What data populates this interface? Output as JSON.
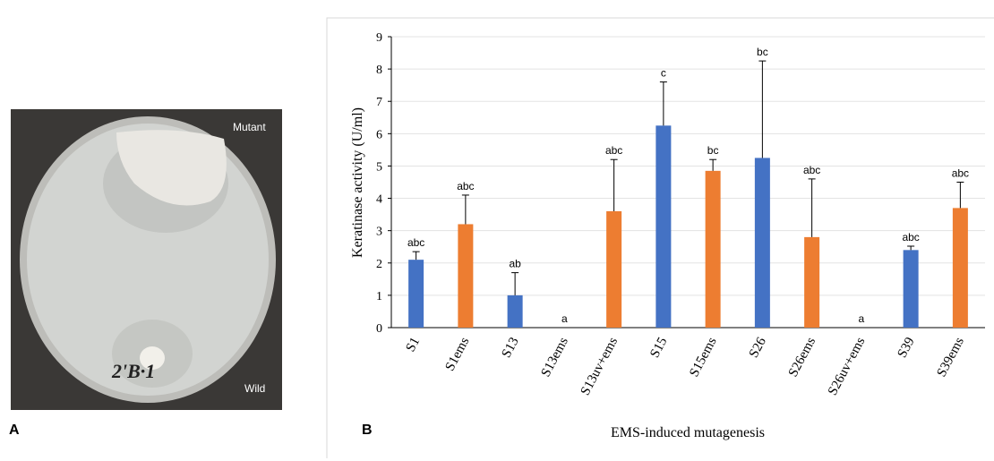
{
  "panels": {
    "a": "A",
    "b": "B"
  },
  "photo": {
    "top_label": "Mutant",
    "bottom_label": "Wild",
    "marking": "2'B·1"
  },
  "chart_data": {
    "type": "bar",
    "y_label": "Keratinase activity (U/ml)",
    "x_label": "EMS-induced mutagenesis",
    "categories": [
      "S1",
      "S1ems",
      "S13",
      "S13ems",
      "S13uv+ems",
      "S15",
      "S15ems",
      "S26",
      "S26ems",
      "S26uv+ems",
      "S39",
      "S39ems"
    ],
    "values": [
      2.1,
      3.2,
      1.0,
      0,
      3.6,
      6.25,
      4.85,
      5.25,
      2.8,
      0,
      2.4,
      3.7
    ],
    "errors": [
      0.25,
      0.9,
      0.7,
      null,
      1.6,
      1.35,
      0.35,
      3.0,
      1.8,
      null,
      0.12,
      0.8
    ],
    "significance": [
      "abc",
      "abc",
      "ab",
      "a",
      "abc",
      "c",
      "bc",
      "bc",
      "abc",
      "a",
      "abc",
      "abc"
    ],
    "colors": [
      "#4472c4",
      "#ed7d31",
      "#4472c4",
      "#ed7d31",
      "#ed7d31",
      "#4472c4",
      "#ed7d31",
      "#4472c4",
      "#ed7d31",
      "#ed7d31",
      "#4472c4",
      "#ed7d31"
    ],
    "ylim": [
      0,
      9
    ],
    "yticks": [
      0,
      1,
      2,
      3,
      4,
      5,
      6,
      7,
      8,
      9
    ],
    "grid": true
  }
}
